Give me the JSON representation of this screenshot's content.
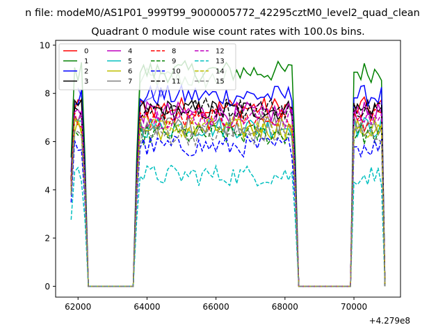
{
  "suptitle": "n file: modeM0/AS1P01_999T99_9000005772_42295cztM0_level2_quad_clean",
  "chart_data": {
    "type": "line",
    "title": "Quadrant 0 module wise count rates with 100.0s bins.",
    "xlabel": "",
    "ylabel": "",
    "x_offset_label": "+4.279e8",
    "xlim": [
      61350,
      71350
    ],
    "ylim": [
      -0.45,
      10.2
    ],
    "xticks": [
      62000,
      64000,
      66000,
      68000,
      70000
    ],
    "xtick_labels": [
      "62000",
      "64000",
      "66000",
      "68000",
      "70000"
    ],
    "yticks": [
      0,
      2,
      4,
      6,
      8,
      10
    ],
    "ytick_labels": [
      "0",
      "2",
      "4",
      "6",
      "8",
      "10"
    ],
    "grid": false,
    "legend_position": "top-left",
    "legend_columns": 4,
    "active_intervals": [
      [
        61800,
        62200
      ],
      [
        63700,
        68300
      ],
      [
        69950,
        70850
      ]
    ],
    "series": [
      {
        "name": "0",
        "color": "#ff0000",
        "dash": "solid",
        "level": 7.4,
        "alpha": 1.0
      },
      {
        "name": "1",
        "color": "#008000",
        "dash": "solid",
        "level": 8.9,
        "alpha": 1.0
      },
      {
        "name": "2",
        "color": "#0000ff",
        "dash": "solid",
        "level": 7.9,
        "alpha": 1.0
      },
      {
        "name": "3",
        "color": "#000000",
        "dash": "solid",
        "level": 7.3,
        "alpha": 1.0
      },
      {
        "name": "4",
        "color": "#bf00bf",
        "dash": "solid",
        "level": 7.2,
        "alpha": 1.0
      },
      {
        "name": "5",
        "color": "#00bfbf",
        "dash": "solid",
        "level": 6.6,
        "alpha": 1.0
      },
      {
        "name": "6",
        "color": "#bfbf00",
        "dash": "solid",
        "level": 6.5,
        "alpha": 1.0
      },
      {
        "name": "7",
        "color": "#808080",
        "dash": "solid",
        "level": 6.7,
        "alpha": 1.0
      },
      {
        "name": "8",
        "color": "#ff0000",
        "dash": "dashed",
        "level": 6.9,
        "alpha": 1.0
      },
      {
        "name": "9",
        "color": "#008000",
        "dash": "dashed",
        "level": 6.3,
        "alpha": 1.0
      },
      {
        "name": "10",
        "color": "#0000ff",
        "dash": "dashed",
        "level": 5.8,
        "alpha": 1.0
      },
      {
        "name": "11",
        "color": "#000000",
        "dash": "dashed",
        "level": 7.4,
        "alpha": 1.0
      },
      {
        "name": "12",
        "color": "#bf00bf",
        "dash": "dashed",
        "level": 7.0,
        "alpha": 1.0
      },
      {
        "name": "13",
        "color": "#00bfbf",
        "dash": "dashed",
        "level": 4.6,
        "alpha": 1.0
      },
      {
        "name": "14",
        "color": "#bfbf00",
        "dash": "dashed",
        "level": 6.6,
        "alpha": 1.0
      },
      {
        "name": "15",
        "color": "#808080",
        "dash": "dashed",
        "level": 6.3,
        "alpha": 1.0
      }
    ],
    "highlight_overlays": [
      {
        "color": "#7fbf7f",
        "x_range": [
          63600,
          66300
        ],
        "level": 8.6
      },
      {
        "color": "#7f7fff",
        "x_range": [
          62000,
          64500
        ],
        "level": 7.9
      }
    ]
  }
}
